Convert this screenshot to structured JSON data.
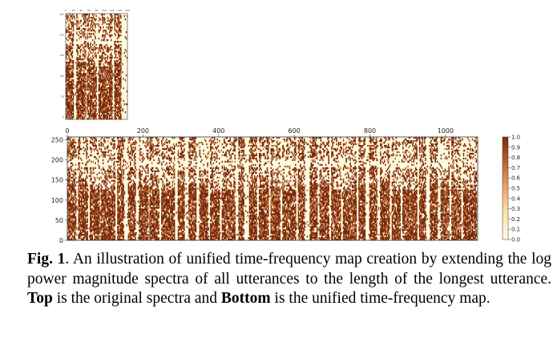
{
  "colors": {
    "dark": "#7a2a0c",
    "light": "#fdfbe0",
    "mid": "#c0622a"
  },
  "figure": {
    "top_plot": {
      "title": "original spectra",
      "x_ticks": [
        "0",
        "20",
        "40",
        "60",
        "80",
        "100",
        "120",
        "140",
        "160"
      ],
      "y_ticks": [
        "250",
        "200",
        "150",
        "100",
        "50",
        "0"
      ]
    },
    "bottom_plot": {
      "title": "unified time-frequency map",
      "x_ticks": [
        "0",
        "200",
        "400",
        "600",
        "800",
        "1000"
      ],
      "y_ticks": [
        "250",
        "200",
        "150",
        "100",
        "50",
        "0"
      ]
    },
    "colorbar": {
      "ticks": [
        "1.0",
        "0.9",
        "0.8",
        "0.7",
        "0.6",
        "0.5",
        "0.4",
        "0.3",
        "0.2",
        "0.1",
        "0.0"
      ]
    }
  },
  "caption": {
    "label": "Fig. 1",
    "text_1": ".  An illustration of unified time-frequency map creation by extending the log power magnitude spectra of all utterances to the length of the longest utterance. ",
    "emph_top": "Top",
    "text_2": " is the original spectra and ",
    "emph_bottom": "Bottom",
    "text_3": " is the unified time-frequency map."
  }
}
